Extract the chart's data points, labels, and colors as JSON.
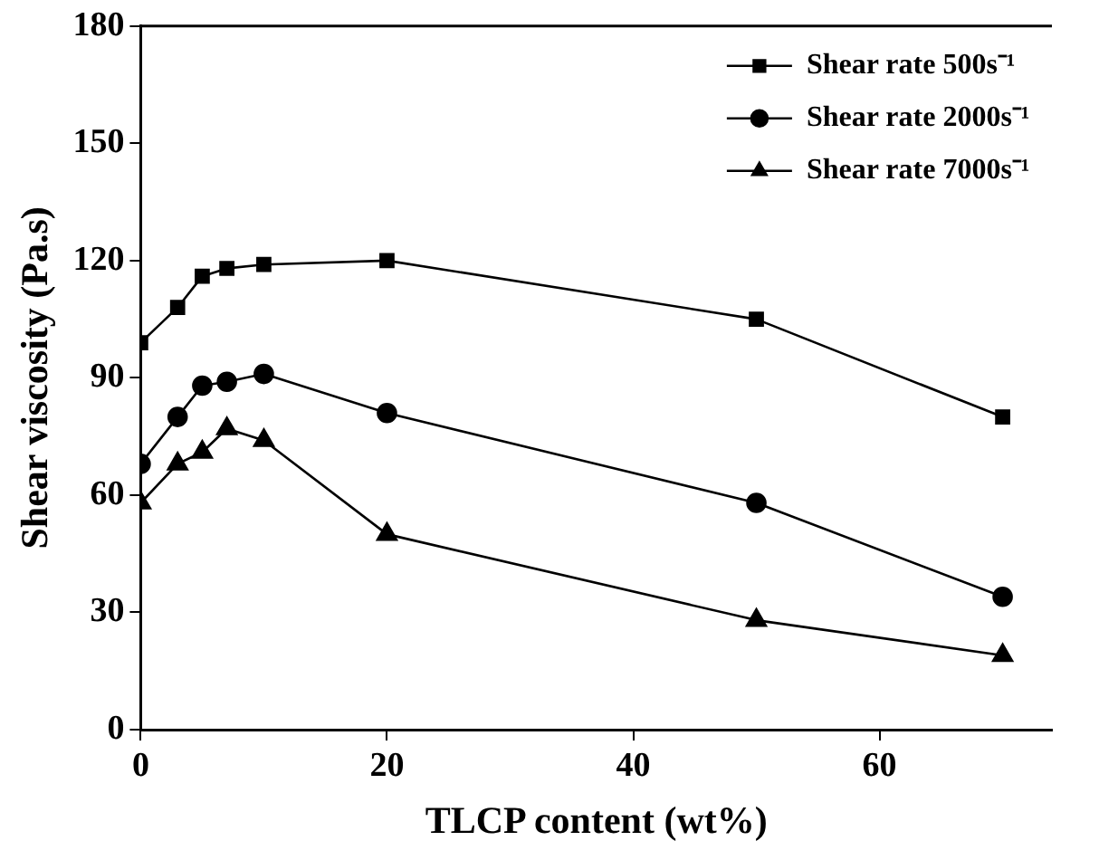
{
  "chart_data": {
    "type": "line",
    "xlabel": "TLCP content (wt%)",
    "ylabel": "Shear viscosity (Pa.s)",
    "x": [
      0,
      3,
      5,
      7,
      10,
      20,
      50,
      70
    ],
    "series": [
      {
        "name": "Shear rate 500s⁻¹",
        "color": "#000000",
        "marker": "square",
        "values": [
          99,
          108,
          116,
          118,
          119,
          120,
          105,
          80
        ]
      },
      {
        "name": "Shear rate 2000s⁻¹",
        "color": "#000000",
        "marker": "circle",
        "values": [
          68,
          80,
          88,
          89,
          91,
          81,
          58,
          34
        ]
      },
      {
        "name": "Shear rate 7000s⁻¹",
        "color": "#000000",
        "marker": "triangle",
        "values": [
          58,
          68,
          71,
          77,
          74,
          50,
          28,
          19
        ]
      }
    ],
    "xlim": [
      0,
      74
    ],
    "xticks": [
      0,
      20,
      40,
      60
    ],
    "ylim": [
      0,
      180
    ],
    "yticks": [
      0,
      30,
      60,
      90,
      120,
      150,
      180
    ],
    "grid": false,
    "legend": "top right",
    "line_style": "solid"
  }
}
